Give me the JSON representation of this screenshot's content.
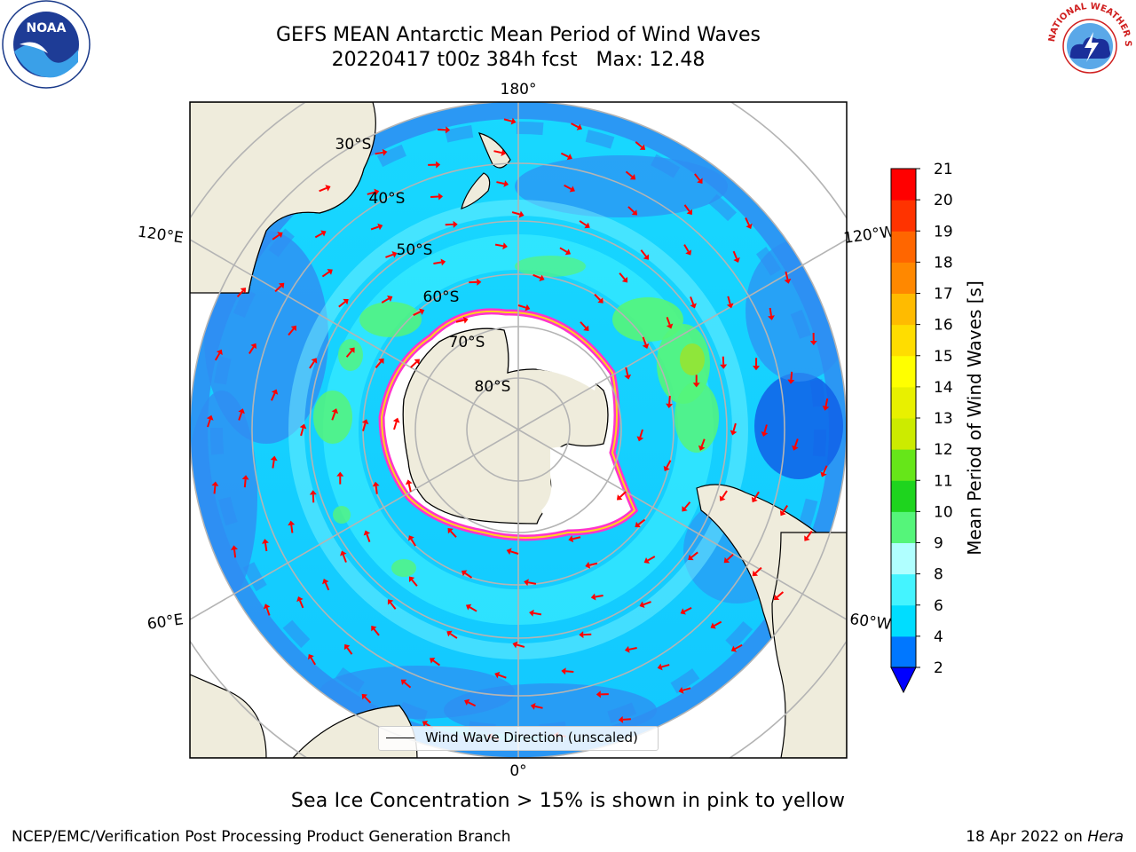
{
  "header": {
    "title_line1": "GEFS MEAN Antarctic Mean Period of Wind Waves",
    "title_line2": "20220417 t00z 384h fcst   Max: 12.48"
  },
  "logos": {
    "left": {
      "name": "noaa-logo",
      "text": "NOAA"
    },
    "right": {
      "name": "national-weather-service-logo",
      "text": "NATIONAL WEATHER SERVICE"
    }
  },
  "map": {
    "projection": "south-polar-stereographic",
    "longitude_labels": {
      "top": "180°",
      "bottom": "0°",
      "left_upper": "120°E",
      "left_lower": "60°E",
      "right_upper": "120°W",
      "right_lower": "60°W"
    },
    "latitude_labels": [
      "30°S",
      "40°S",
      "50°S",
      "60°S",
      "70°S",
      "80°S"
    ],
    "legend_label": "Wind Wave Direction (unscaled)",
    "colors": {
      "land": "#efecdc",
      "ice": "#ffffff",
      "ice_edge": [
        "#ff33cc",
        "#ffd21f"
      ],
      "graticule": "#b4b4b4",
      "arrow": "#ff0000"
    }
  },
  "colorbar": {
    "label": "Mean Period of Wind Waves [s]",
    "ticks": [
      "2",
      "4",
      "6",
      "8",
      "9",
      "10",
      "11",
      "12",
      "13",
      "14",
      "15",
      "16",
      "17",
      "18",
      "19",
      "20",
      "21"
    ],
    "under_color": "#0000ff",
    "colors": [
      "#0077ff",
      "#00ddff",
      "#44f4ff",
      "#b0ffff",
      "#55f57a",
      "#1ed41e",
      "#66e619",
      "#cceb00",
      "#e8f000",
      "#ffff00",
      "#ffdd00",
      "#ffbb00",
      "#ff8800",
      "#ff6600",
      "#ff3300",
      "#ff0000"
    ]
  },
  "footer": {
    "subtitle": "Sea Ice Concentration > 15% is shown in pink to yellow",
    "left": "NCEP/EMC/Verification Post Processing Product Generation Branch",
    "right_date": "18 Apr 2022 on ",
    "right_host": "Hera"
  }
}
